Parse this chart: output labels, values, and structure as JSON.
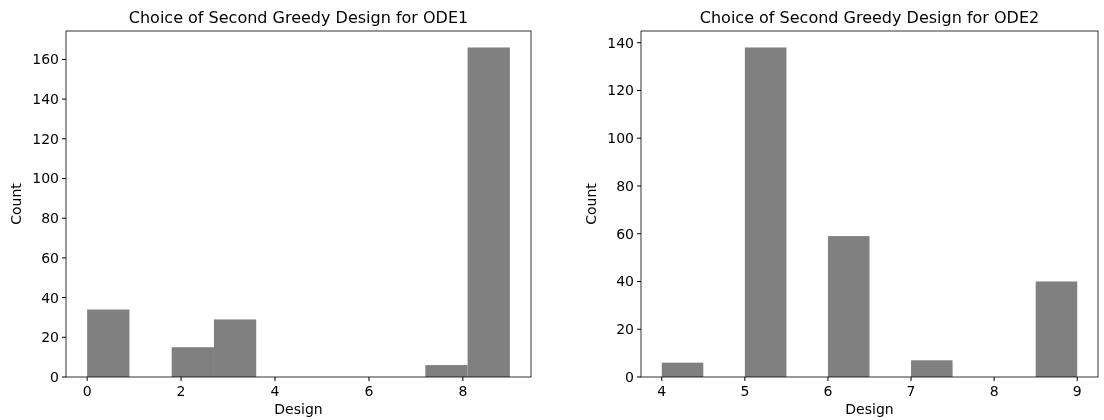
{
  "chart_data": [
    {
      "type": "histogram",
      "title": "Choice of Second Greedy Design for ODE1",
      "xlabel": "Design",
      "ylabel": "Count",
      "bins": [
        0,
        0.9,
        1.8,
        2.7,
        3.6,
        4.5,
        5.4,
        6.3,
        7.2,
        8.1,
        9
      ],
      "values": [
        34,
        0,
        15,
        29,
        0,
        0,
        0,
        0,
        6,
        166
      ],
      "color": "#808080",
      "xlim": [
        -0.45,
        9.45
      ],
      "ylim": [
        0,
        174.3
      ],
      "xticks": [
        0,
        2,
        4,
        6,
        8
      ],
      "yticks": [
        0,
        20,
        40,
        60,
        80,
        100,
        120,
        140,
        160
      ],
      "grid": false
    },
    {
      "type": "histogram",
      "title": "Choice of Second Greedy Design for ODE2",
      "xlabel": "Design",
      "ylabel": "Count",
      "bins": [
        4,
        4.5,
        5,
        5.5,
        6,
        6.5,
        7,
        7.5,
        8,
        8.5,
        9
      ],
      "values": [
        6,
        0,
        138,
        0,
        59,
        0,
        7,
        0,
        0,
        40
      ],
      "color": "#808080",
      "xlim": [
        3.75,
        9.25
      ],
      "ylim": [
        0,
        144.9
      ],
      "xticks": [
        4,
        5,
        6,
        7,
        8,
        9
      ],
      "yticks": [
        0,
        20,
        40,
        60,
        80,
        100,
        120,
        140
      ],
      "grid": false
    }
  ]
}
